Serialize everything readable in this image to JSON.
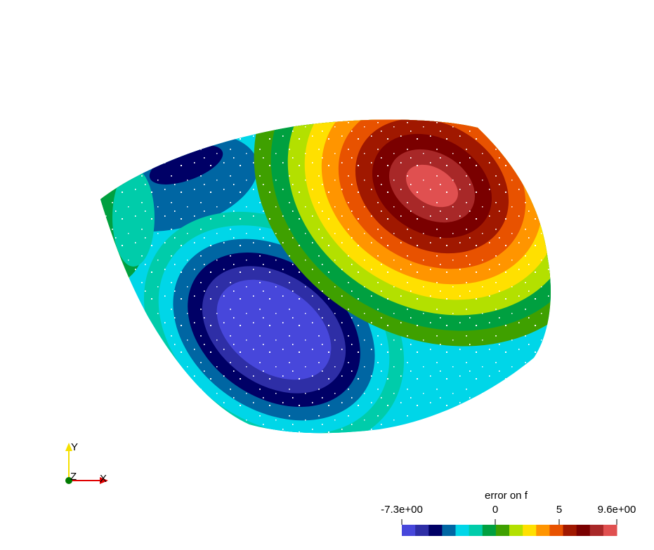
{
  "axes": {
    "x_label": "X",
    "y_label": "Y",
    "z_label": "Z",
    "colors": {
      "x": "#e00000",
      "y": "#f5e000",
      "z": "#007a00"
    }
  },
  "legend": {
    "title": "error on f",
    "ticks": [
      "-7.3e+00",
      "0",
      "5",
      "9.6e+00"
    ],
    "range": [
      -7.3,
      9.6
    ],
    "tick_values": [
      -7.3,
      0,
      5,
      9.6
    ],
    "colors": [
      "#4747db",
      "#2e2ea6",
      "#000066",
      "#0066a3",
      "#00d6e8",
      "#00ccaa",
      "#00a040",
      "#3fa000",
      "#b3e000",
      "#ffe000",
      "#ff9500",
      "#e85200",
      "#a01800",
      "#7a0000",
      "#a82828",
      "#e05050"
    ]
  }
}
